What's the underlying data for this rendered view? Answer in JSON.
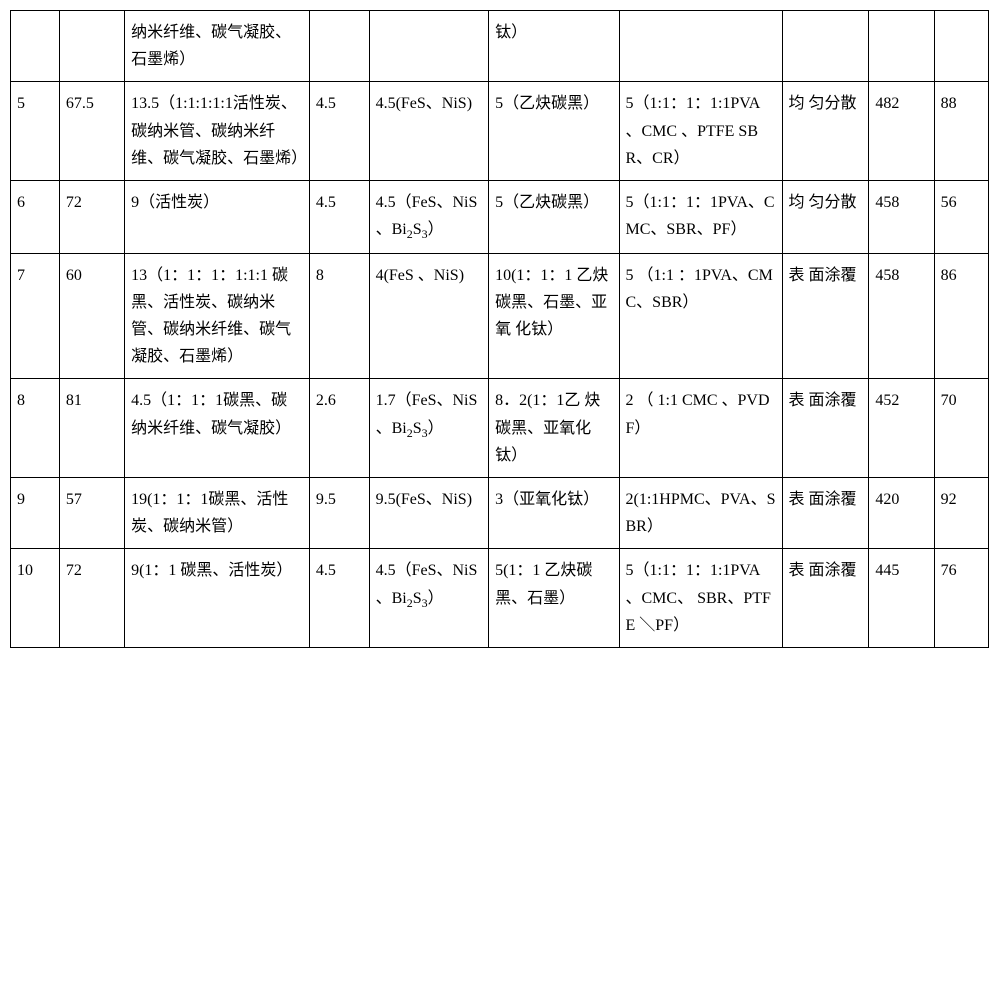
{
  "table": {
    "columns": [
      {
        "width": "4.5%"
      },
      {
        "width": "6%"
      },
      {
        "width": "17%"
      },
      {
        "width": "5.5%"
      },
      {
        "width": "11%"
      },
      {
        "width": "12%"
      },
      {
        "width": "15%"
      },
      {
        "width": "8%"
      },
      {
        "width": "6%"
      },
      {
        "width": "5%"
      }
    ],
    "border_color": "#000000",
    "background_color": "#ffffff",
    "font_family": "SimSun",
    "font_size": 16,
    "rows": [
      {
        "cells": [
          "",
          "",
          "纳米纤维、碳气凝胶、石墨烯）",
          "",
          "",
          "钛）",
          "",
          "",
          "",
          ""
        ]
      },
      {
        "cells": [
          "5",
          "67.5",
          "13.5（1:1:1:1:1活性炭、碳纳米管、碳纳米纤维、碳气凝胶、石墨烯）",
          "4.5",
          "4.5(FeS、NiS)",
          "5（乙炔碳黑）",
          "5（1:1：1：1:1PVA 、CMC 、PTFE SBR、CR）",
          "均 匀分散",
          "482",
          "88"
        ]
      },
      {
        "cells": [
          "6",
          "72",
          "9（活性炭）",
          "4.5",
          "4.5（FeS、NiS 、Bi₂S₃）",
          "5（乙炔碳黑）",
          "5（1:1：1：1PVA、CMC、SBR、PF）",
          "均 匀分散",
          "458",
          "56"
        ]
      },
      {
        "cells": [
          "7",
          "60",
          "13（1：1：1：1:1:1 碳黑、活性炭、碳纳米管、碳纳米纤维、碳气凝胶、石墨烯）",
          "8",
          "4(FeS 、NiS)",
          "10(1：1：1 乙炔碳黑、石墨、亚 氧 化钛）",
          "5 （1:1 ：1PVA、CMC、SBR）",
          "表 面涂覆",
          "458",
          "86"
        ]
      },
      {
        "cells": [
          "8",
          "81",
          "4.5（1：1：1碳黑、碳纳米纤维、碳气凝胶）",
          "2.6",
          "1.7（FeS、NiS 、Bi₂S₃）",
          "8．2(1：1乙 炔 碳黑、亚氧化钛）",
          "2 （ 1:1 CMC 、PVDF）",
          "表 面涂覆",
          "452",
          "70"
        ]
      },
      {
        "cells": [
          "9",
          "57",
          "19(1：1：1碳黑、活性炭、碳纳米管）",
          "9.5",
          "9.5(FeS、NiS)",
          "3（亚氧化钛）",
          "2(1:1HPMC、PVA、SBR）",
          "表 面涂覆",
          "420",
          "92"
        ]
      },
      {
        "cells": [
          "10",
          "72",
          "9(1：1 碳黑、活性炭）",
          "4.5",
          "4.5（FeS、NiS 、Bi₂S₃）",
          "5(1：1 乙炔碳黑、石墨）",
          "5（1:1：1：1:1PVA 、CMC、 SBR、PTFE ＼PF）",
          "表 面涂覆",
          "445",
          "76"
        ]
      }
    ]
  }
}
